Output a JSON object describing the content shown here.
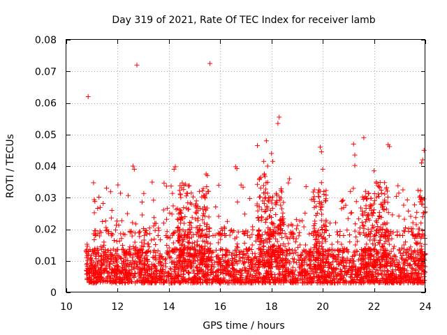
{
  "chart_data": {
    "type": "scatter",
    "title": "Day 319 of 2021, Rate Of TEC Index for receiver lamb",
    "xlabel": "GPS time / hours",
    "ylabel": "ROTI / TECUs",
    "xlim": [
      10,
      24
    ],
    "ylim": [
      0,
      0.08
    ],
    "xticks": [
      10,
      12,
      14,
      16,
      18,
      20,
      22,
      24
    ],
    "xtick_labels": [
      "10",
      "12",
      "14",
      "16",
      "18",
      "20",
      "22",
      "24"
    ],
    "yticks": [
      0,
      0.01,
      0.02,
      0.03,
      0.04,
      0.05,
      0.06,
      0.07,
      0.08
    ],
    "ytick_labels": [
      "0",
      "0.01",
      "0.02",
      "0.03",
      "0.04",
      "0.05",
      "0.06",
      "0.07",
      "0.08"
    ],
    "grid": true,
    "marker": "+",
    "marker_color": "#ff0000",
    "series": [
      {
        "name": "ROTI",
        "data_range_hours": [
          10.75,
          24
        ],
        "typical_band": [
          0.003,
          0.02
        ],
        "notable_points": [
          [
            10.85,
            0.062
          ],
          [
            12.75,
            0.072
          ],
          [
            15.6,
            0.0725
          ],
          [
            18.3,
            0.0555
          ],
          [
            18.25,
            0.0535
          ],
          [
            21.6,
            0.049
          ],
          [
            17.8,
            0.048
          ],
          [
            22.55,
            0.0468
          ],
          [
            22.6,
            0.0462
          ],
          [
            17.45,
            0.0465
          ],
          [
            21.2,
            0.047
          ],
          [
            19.9,
            0.046
          ],
          [
            19.95,
            0.0445
          ],
          [
            23.95,
            0.045
          ],
          [
            18.0,
            0.044
          ],
          [
            18.05,
            0.0415
          ],
          [
            21.25,
            0.0435
          ],
          [
            12.6,
            0.04
          ],
          [
            12.65,
            0.039
          ],
          [
            14.25,
            0.0398
          ],
          [
            14.2,
            0.039
          ],
          [
            16.6,
            0.0398
          ],
          [
            16.65,
            0.0392
          ],
          [
            17.7,
            0.0415
          ],
          [
            17.85,
            0.04
          ],
          [
            21.25,
            0.0402
          ],
          [
            23.9,
            0.042
          ],
          [
            23.85,
            0.041
          ],
          [
            15.45,
            0.0375
          ],
          [
            15.5,
            0.037
          ],
          [
            22.0,
            0.0385
          ],
          [
            20.0,
            0.039
          ],
          [
            18.7,
            0.036
          ]
        ],
        "activity_bursts": [
          {
            "center_hours": 14.6,
            "peak": 0.035
          },
          {
            "center_hours": 15.3,
            "peak": 0.033
          },
          {
            "center_hours": 17.7,
            "peak": 0.038
          },
          {
            "center_hours": 18.2,
            "peak": 0.033
          },
          {
            "center_hours": 19.9,
            "peak": 0.033
          },
          {
            "center_hours": 21.8,
            "peak": 0.032
          },
          {
            "center_hours": 22.3,
            "peak": 0.035
          },
          {
            "center_hours": 23.9,
            "peak": 0.033
          }
        ]
      }
    ]
  }
}
